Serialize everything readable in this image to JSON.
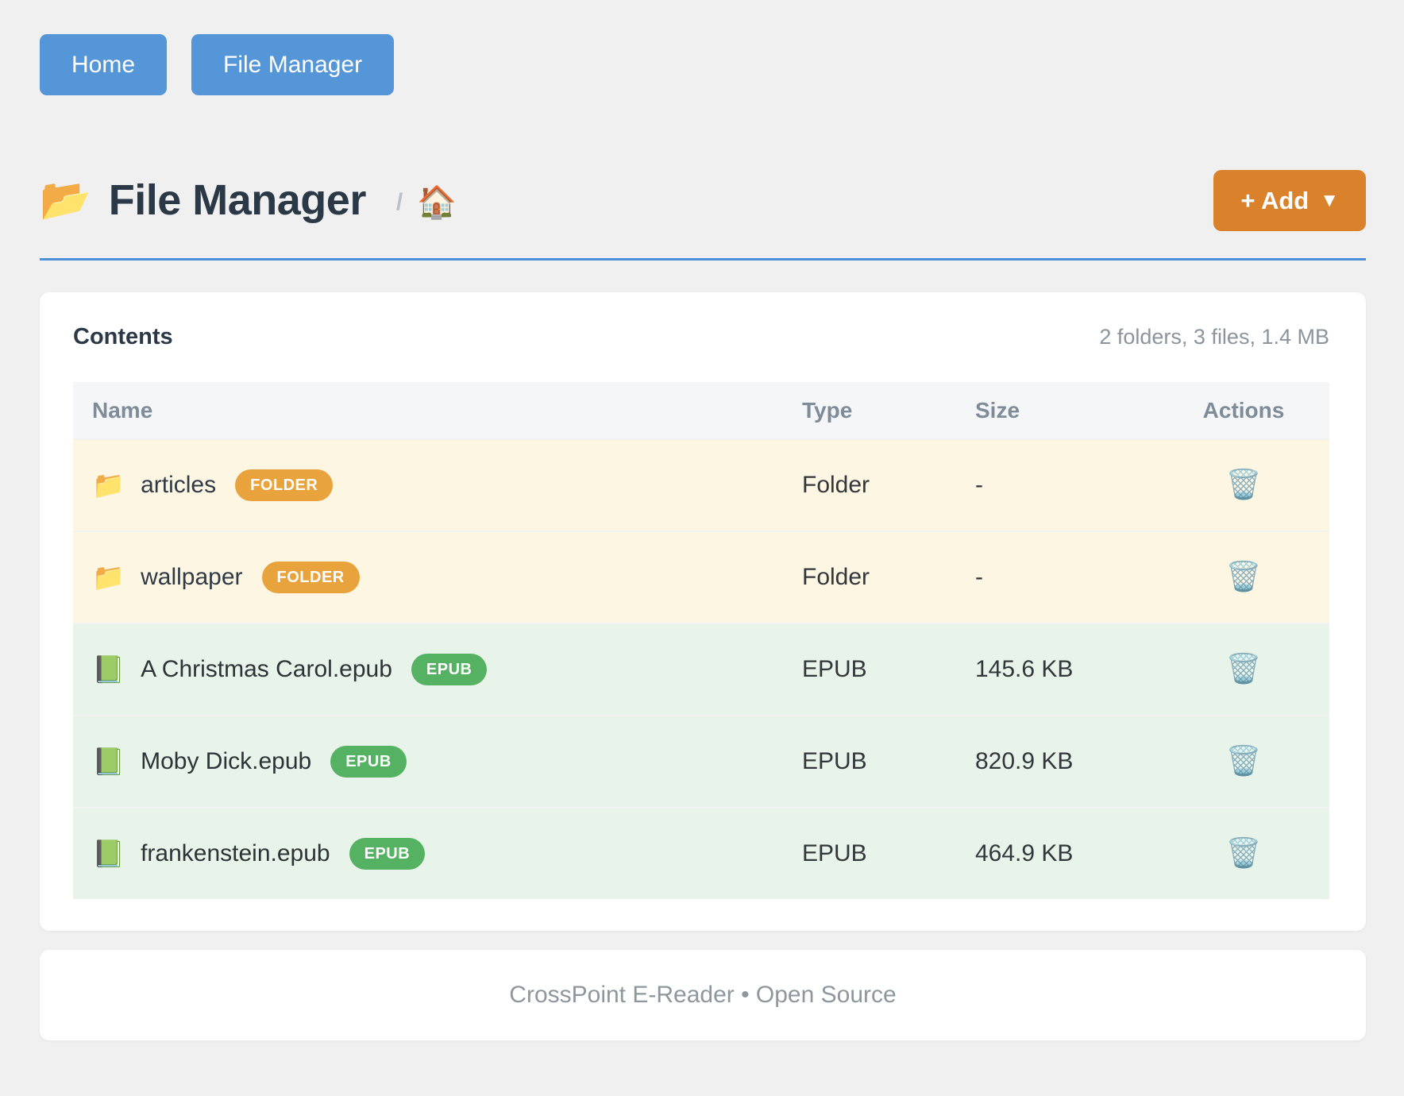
{
  "nav": {
    "home_label": "Home",
    "file_manager_label": "File Manager"
  },
  "header": {
    "title_icon": "📂",
    "title": "File Manager",
    "breadcrumb_separator": "/",
    "breadcrumb_home_icon": "🏠",
    "add_button_label": "+ Add",
    "add_button_caret": "▼"
  },
  "contents": {
    "heading": "Contents",
    "summary": "2 folders, 3 files, 1.4 MB",
    "table": {
      "headers": {
        "name": "Name",
        "type": "Type",
        "size": "Size",
        "actions": "Actions"
      },
      "rows": [
        {
          "icon": "📁",
          "name": "articles",
          "badge": "FOLDER",
          "type": "Folder",
          "size": "-",
          "action_icon": "🗑️"
        },
        {
          "icon": "📁",
          "name": "wallpaper",
          "badge": "FOLDER",
          "type": "Folder",
          "size": "-",
          "action_icon": "🗑️"
        },
        {
          "icon": "📗",
          "name": "A Christmas Carol.epub",
          "badge": "EPUB",
          "type": "EPUB",
          "size": "145.6 KB",
          "action_icon": "🗑️"
        },
        {
          "icon": "📗",
          "name": "Moby Dick.epub",
          "badge": "EPUB",
          "type": "EPUB",
          "size": "820.9 KB",
          "action_icon": "🗑️"
        },
        {
          "icon": "📗",
          "name": "frankenstein.epub",
          "badge": "EPUB",
          "type": "EPUB",
          "size": "464.9 KB",
          "action_icon": "🗑️"
        }
      ]
    }
  },
  "footer": {
    "text": "CrossPoint E-Reader • Open Source"
  },
  "colors": {
    "accent_blue": "#5596d8",
    "accent_orange": "#d9822b",
    "badge_folder": "#e9a33c",
    "badge_epub": "#56b263",
    "row_folder_bg": "#fdf6e3",
    "row_epub_bg": "#e8f3e9",
    "page_bg": "#f0f0f1"
  }
}
